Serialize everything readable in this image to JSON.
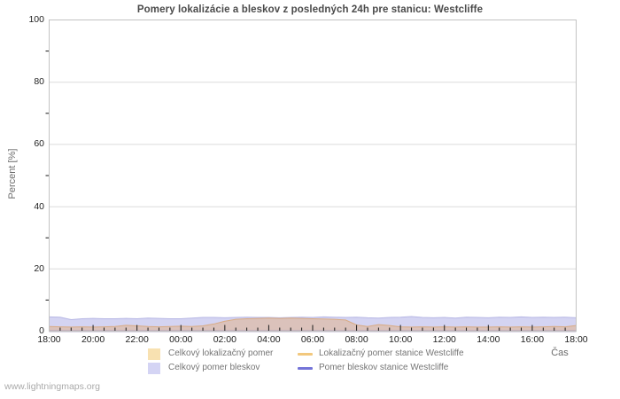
{
  "footer": "www.lightningmaps.org",
  "chart_data": {
    "type": "area",
    "title": "Pomery lokalizácie a bleskov z posledných 24h pre stanicu: Westcliffe",
    "xlabel": "Čas",
    "ylabel": "Percent  [%]",
    "ylim": [
      0,
      100
    ],
    "ytick_major": [
      0,
      20,
      40,
      60,
      80,
      100
    ],
    "ytick_minor": [
      10,
      30,
      50,
      70,
      90
    ],
    "x_span_minutes": 1440,
    "xtick_major_every_min": 120,
    "xtick_minor_every_min": 30,
    "xtick_major_labels": [
      "18:00",
      "20:00",
      "22:00",
      "00:00",
      "02:00",
      "04:00",
      "06:00",
      "08:00",
      "10:00",
      "12:00",
      "14:00",
      "16:00",
      "18:00"
    ],
    "sample_interval_min": 30,
    "grid": "horizontal",
    "legend_position": "bottom",
    "series": [
      {
        "name": "Celkový lokalizačný pomer",
        "kind": "area",
        "fill": "rgba(228,172,120,0.45)",
        "edge": "#d9ab83",
        "swatch": "#f8e1b1",
        "values": [
          1.5,
          1.4,
          1.3,
          1.4,
          1.3,
          1.4,
          1.5,
          1.9,
          1.7,
          1.5,
          1.4,
          1.5,
          1.6,
          1.5,
          1.7,
          2.3,
          3.2,
          3.8,
          4.0,
          4.1,
          4.2,
          4.1,
          4.2,
          4.1,
          4.0,
          3.9,
          3.8,
          3.6,
          2.0,
          1.5,
          2.1,
          1.8,
          1.4,
          1.3,
          1.4,
          1.3,
          1.4,
          1.3,
          1.4,
          1.3,
          1.3,
          1.4,
          1.3,
          1.4,
          1.3,
          1.4,
          1.5,
          1.4,
          1.8
        ]
      },
      {
        "name": "Celkový pomer bleskov",
        "kind": "area",
        "fill": "rgba(160,160,226,0.45)",
        "edge": "#b6b6e4",
        "swatch": "#d4d4f4",
        "values": [
          4.6,
          4.5,
          3.7,
          4.0,
          4.1,
          4.0,
          4.0,
          4.1,
          4.0,
          4.2,
          4.1,
          4.0,
          4.0,
          4.2,
          4.4,
          4.4,
          4.3,
          4.4,
          4.5,
          4.4,
          4.4,
          4.3,
          4.4,
          4.5,
          4.4,
          4.6,
          4.5,
          4.4,
          4.5,
          4.3,
          4.2,
          4.4,
          4.5,
          4.7,
          4.4,
          4.3,
          4.4,
          4.2,
          4.5,
          4.4,
          4.3,
          4.5,
          4.4,
          4.6,
          4.4,
          4.5,
          4.4,
          4.5,
          4.3
        ]
      },
      {
        "name": "Lokalizačný pomer stanice Westcliffe",
        "kind": "line",
        "stroke": "#f2c87d",
        "swatch": "#f2c87d",
        "values": [
          0,
          0,
          0,
          0,
          0,
          0,
          0,
          0,
          0,
          0,
          0,
          0,
          0,
          0,
          0,
          0,
          0,
          0,
          0,
          0,
          0,
          0,
          0,
          0,
          0,
          0,
          0,
          0,
          0,
          0,
          0,
          0,
          0,
          0,
          0,
          0,
          0,
          0,
          0,
          0,
          0,
          0,
          0,
          0,
          0,
          0,
          0,
          0,
          0
        ]
      },
      {
        "name": "Pomer bleskov stanice Westcliffe",
        "kind": "line",
        "stroke": "#7474d8",
        "swatch": "#7474d8",
        "values": [
          0,
          0,
          0,
          0,
          0,
          0,
          0,
          0,
          0,
          0,
          0,
          0,
          0,
          0,
          0,
          0,
          0,
          0,
          0,
          0,
          0,
          0,
          0,
          0,
          0,
          0,
          0,
          0,
          0,
          0,
          0,
          0,
          0,
          0,
          0,
          0,
          0,
          0,
          0,
          0,
          0,
          0,
          0,
          0,
          0,
          0,
          0,
          0,
          0
        ]
      }
    ],
    "colors": {
      "grid": "#dcdcdc",
      "border": "#c3c3c3",
      "tick": "#1a1a1a",
      "title_text": "#4a4a4a",
      "axis_text": "#222222",
      "legend_text": "#757575",
      "footer_text": "#aaaaaa"
    }
  }
}
